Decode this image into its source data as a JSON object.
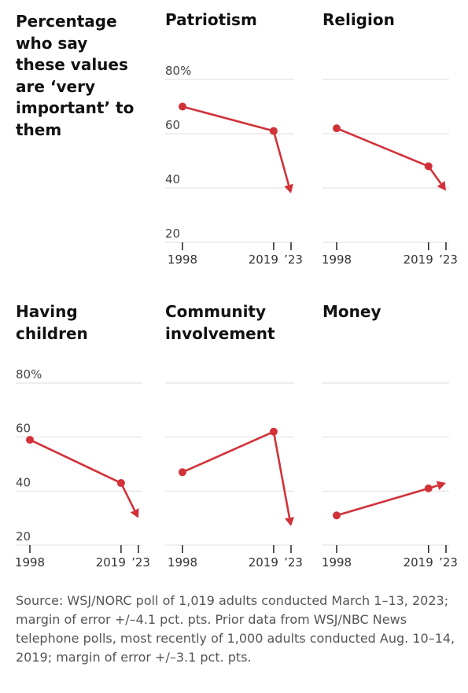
{
  "title": "Percentage who say these values are ‘very important’ to them",
  "y_unit": "%",
  "source": "Source: WSJ/NORC poll of 1,019 adults conducted March 1–13, 2023; margin of error +/–4.1 pct. pts. Prior data from WSJ/NBC News telephone polls, most recently of 1,000 adults conducted Aug. 10–14, 2019; margin of error +/–3.1 pct. pts.",
  "colors": {
    "line": "#d13239",
    "grid": "#e3e3e3",
    "text": "#1a1a1a",
    "axis": "#222222",
    "muted": "#555555"
  },
  "chart_data": [
    {
      "type": "line",
      "title": "Patriotism",
      "categories": [
        "1998",
        "2019",
        "’23"
      ],
      "x": [
        1998,
        2019,
        2023
      ],
      "ylim": [
        20,
        80
      ],
      "yticks": [
        80,
        60,
        40,
        20
      ],
      "grid": true,
      "series": [
        {
          "values": [
            70,
            61,
            38
          ]
        }
      ]
    },
    {
      "type": "line",
      "title": "Religion",
      "categories": [
        "1998",
        "2019",
        "’23"
      ],
      "x": [
        1998,
        2019,
        2023
      ],
      "ylim": [
        20,
        80
      ],
      "yticks": [
        80,
        60,
        40,
        20
      ],
      "grid": true,
      "series": [
        {
          "values": [
            62,
            48,
            39
          ]
        }
      ]
    },
    {
      "type": "line",
      "title": "Having children",
      "categories": [
        "1998",
        "2019",
        "’23"
      ],
      "x": [
        1998,
        2019,
        2023
      ],
      "ylim": [
        20,
        80
      ],
      "yticks": [
        80,
        60,
        40,
        20
      ],
      "grid": true,
      "series": [
        {
          "values": [
            59,
            43,
            30
          ]
        }
      ]
    },
    {
      "type": "line",
      "title": "Community involvement",
      "categories": [
        "1998",
        "2019",
        "’23"
      ],
      "x": [
        1998,
        2019,
        2023
      ],
      "ylim": [
        20,
        80
      ],
      "yticks": [
        80,
        60,
        40,
        20
      ],
      "grid": true,
      "series": [
        {
          "values": [
            47,
            62,
            27
          ]
        }
      ]
    },
    {
      "type": "line",
      "title": "Money",
      "categories": [
        "1998",
        "2019",
        "’23"
      ],
      "x": [
        1998,
        2019,
        2023
      ],
      "ylim": [
        20,
        80
      ],
      "yticks": [
        80,
        60,
        40,
        20
      ],
      "grid": true,
      "series": [
        {
          "values": [
            31,
            41,
            43
          ]
        }
      ]
    }
  ]
}
